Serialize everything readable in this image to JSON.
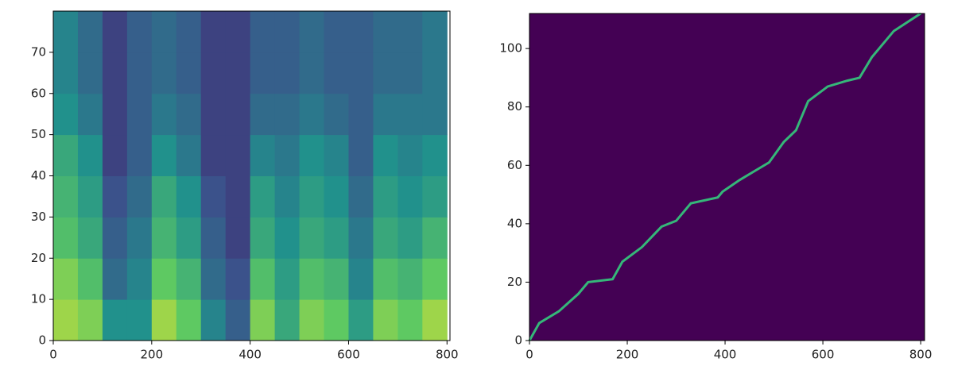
{
  "chart_data": [
    {
      "type": "heatmap",
      "colormap": "viridis",
      "x": [
        0,
        50,
        100,
        150,
        200,
        250,
        300,
        350,
        400,
        450,
        500,
        550,
        600,
        650,
        700,
        750,
        800
      ],
      "y": [
        0,
        10,
        20,
        30,
        40,
        50,
        60,
        70,
        80
      ],
      "z": [
        [
          0.85,
          0.8,
          0.7,
          0.65,
          0.6,
          0.5,
          0.45,
          0.45
        ],
        [
          0.8,
          0.7,
          0.6,
          0.55,
          0.5,
          0.4,
          0.35,
          0.35
        ],
        [
          0.5,
          0.35,
          0.3,
          0.25,
          0.2,
          0.2,
          0.2,
          0.2
        ],
        [
          0.5,
          0.45,
          0.4,
          0.35,
          0.3,
          0.3,
          0.3,
          0.3
        ],
        [
          0.85,
          0.75,
          0.65,
          0.6,
          0.5,
          0.4,
          0.35,
          0.35
        ],
        [
          0.75,
          0.65,
          0.55,
          0.5,
          0.4,
          0.35,
          0.3,
          0.3
        ],
        [
          0.45,
          0.35,
          0.3,
          0.25,
          0.2,
          0.2,
          0.2,
          0.2
        ],
        [
          0.3,
          0.25,
          0.2,
          0.2,
          0.2,
          0.2,
          0.2,
          0.2
        ],
        [
          0.8,
          0.7,
          0.6,
          0.55,
          0.45,
          0.35,
          0.3,
          0.3
        ],
        [
          0.6,
          0.55,
          0.5,
          0.45,
          0.4,
          0.35,
          0.3,
          0.3
        ],
        [
          0.8,
          0.7,
          0.6,
          0.55,
          0.5,
          0.4,
          0.35,
          0.35
        ],
        [
          0.75,
          0.65,
          0.55,
          0.5,
          0.45,
          0.35,
          0.3,
          0.3
        ],
        [
          0.55,
          0.45,
          0.4,
          0.35,
          0.3,
          0.3,
          0.3,
          0.3
        ],
        [
          0.8,
          0.7,
          0.6,
          0.55,
          0.5,
          0.4,
          0.35,
          0.35
        ],
        [
          0.75,
          0.65,
          0.55,
          0.5,
          0.45,
          0.4,
          0.35,
          0.35
        ],
        [
          0.85,
          0.75,
          0.65,
          0.55,
          0.5,
          0.4,
          0.4,
          0.4
        ]
      ],
      "xlim": [
        0,
        806
      ],
      "ylim": [
        0,
        80
      ],
      "xticks": [
        0,
        200,
        400,
        600,
        800
      ],
      "yticks": [
        0,
        10,
        20,
        30,
        40,
        50,
        60,
        70
      ]
    },
    {
      "type": "line",
      "background": "#440154",
      "x": [
        0,
        20,
        60,
        100,
        120,
        170,
        190,
        230,
        270,
        300,
        330,
        385,
        395,
        430,
        460,
        490,
        520,
        545,
        570,
        610,
        650,
        675,
        700,
        745,
        800
      ],
      "series": [
        {
          "color": "#35b779",
          "values": [
            0,
            6,
            10,
            16,
            20,
            21,
            27,
            32,
            39,
            41,
            47,
            49,
            51,
            55,
            58,
            61,
            68,
            72,
            82,
            87,
            89,
            90,
            97,
            106,
            112
          ]
        }
      ],
      "xlim": [
        0,
        808
      ],
      "ylim": [
        0,
        112
      ],
      "xticks": [
        0,
        200,
        400,
        600,
        800
      ],
      "yticks": [
        0,
        20,
        40,
        60,
        80,
        100
      ]
    }
  ]
}
